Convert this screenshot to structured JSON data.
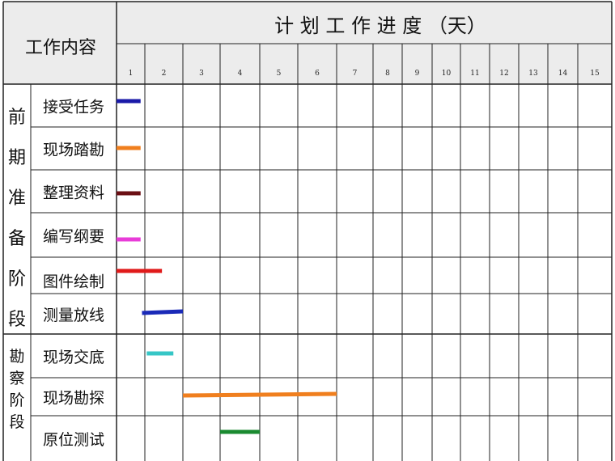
{
  "chart_data": {
    "type": "gantt",
    "title": "计 划 工 作 进 度 （天）",
    "task_column_header": "工作内容",
    "days": [
      "1",
      "2",
      "3",
      "4",
      "5",
      "6",
      "7",
      "8",
      "9",
      "10",
      "11",
      "12",
      "13",
      "14",
      "15"
    ],
    "phases": [
      {
        "label": "前期准备阶段",
        "chars": [
          "前",
          "期",
          "准",
          "备",
          "阶",
          "段"
        ]
      },
      {
        "label": "勘察阶段",
        "chars": [
          "勘",
          "察",
          "阶",
          "段"
        ]
      }
    ],
    "tasks": [
      {
        "phase": 0,
        "name": "接受任务",
        "start": 1.0,
        "end": 1.85,
        "color": "#1a1aa8"
      },
      {
        "phase": 0,
        "name": "现场踏勘",
        "start": 1.0,
        "end": 1.85,
        "color": "#f07f1e"
      },
      {
        "phase": 0,
        "name": "整理资料",
        "start": 1.0,
        "end": 1.85,
        "color": "#6b0f14"
      },
      {
        "phase": 0,
        "name": "编写纲要",
        "start": 1.0,
        "end": 1.85,
        "color": "#e83cd8"
      },
      {
        "phase": 0,
        "name": "图件绘制",
        "start": 1.0,
        "end": 2.45,
        "color": "#e01a1a"
      },
      {
        "phase": 0,
        "name": "测量放线",
        "start": 1.9,
        "end": 3.0,
        "color": "#1a2ab8"
      },
      {
        "phase": 1,
        "name": "现场交底",
        "start": 2.05,
        "end": 2.75,
        "color": "#36c6c6"
      },
      {
        "phase": 1,
        "name": "现场勘探",
        "start": 3.0,
        "end": 7.0,
        "color": "#f07f1e"
      },
      {
        "phase": 1,
        "name": "原位测试",
        "start": 4.0,
        "end": 5.0,
        "color": "#1a8a30"
      }
    ]
  }
}
